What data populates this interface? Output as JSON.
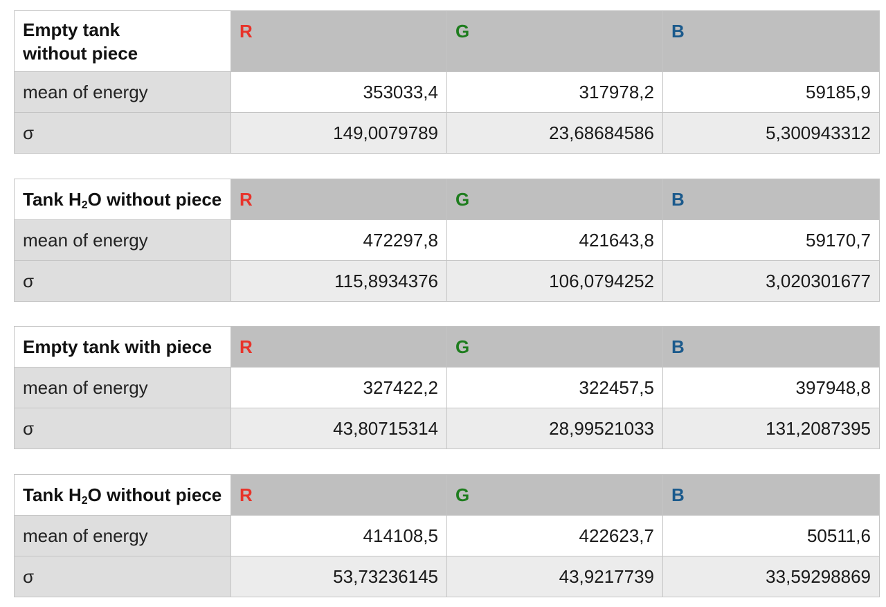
{
  "colors": {
    "R": "#e8332a",
    "G": "#1e7d1e",
    "B": "#1b5a8c",
    "header_bg": "#bfbfbf",
    "label_bg": "#dedede"
  },
  "tables": [
    {
      "title_line1": "Empty tank",
      "title_line2": "without piece",
      "channels": [
        "R",
        "G",
        "B"
      ],
      "mean_label": "mean of energy",
      "mean": [
        "353033,4",
        "317978,2",
        "59185,9"
      ],
      "sigma_label": "σ",
      "sigma": [
        "149,0079789",
        "23,68684586",
        "5,300943312"
      ]
    },
    {
      "title_pre": "Tank H",
      "title_sub": "2",
      "title_post": "O without piece",
      "channels": [
        "R",
        "G",
        "B"
      ],
      "mean_label": "mean of energy",
      "mean": [
        "472297,8",
        "421643,8",
        "59170,7"
      ],
      "sigma_label": "σ",
      "sigma": [
        "115,8934376",
        "106,0794252",
        "3,020301677"
      ]
    },
    {
      "title": "Empty tank with piece",
      "channels": [
        "R",
        "G",
        "B"
      ],
      "mean_label": "mean of energy",
      "mean": [
        "327422,2",
        "322457,5",
        "397948,8"
      ],
      "sigma_label": "σ",
      "sigma": [
        "43,80715314",
        "28,99521033",
        "131,2087395"
      ]
    },
    {
      "title_pre": "Tank H",
      "title_sub": "2",
      "title_post": "O without piece",
      "channels": [
        "R",
        "G",
        "B"
      ],
      "mean_label": "mean of energy",
      "mean": [
        "414108,5",
        "422623,7",
        "50511,6"
      ],
      "sigma_label": "σ",
      "sigma": [
        "53,73236145",
        "43,9217739",
        "33,59298869"
      ]
    }
  ]
}
